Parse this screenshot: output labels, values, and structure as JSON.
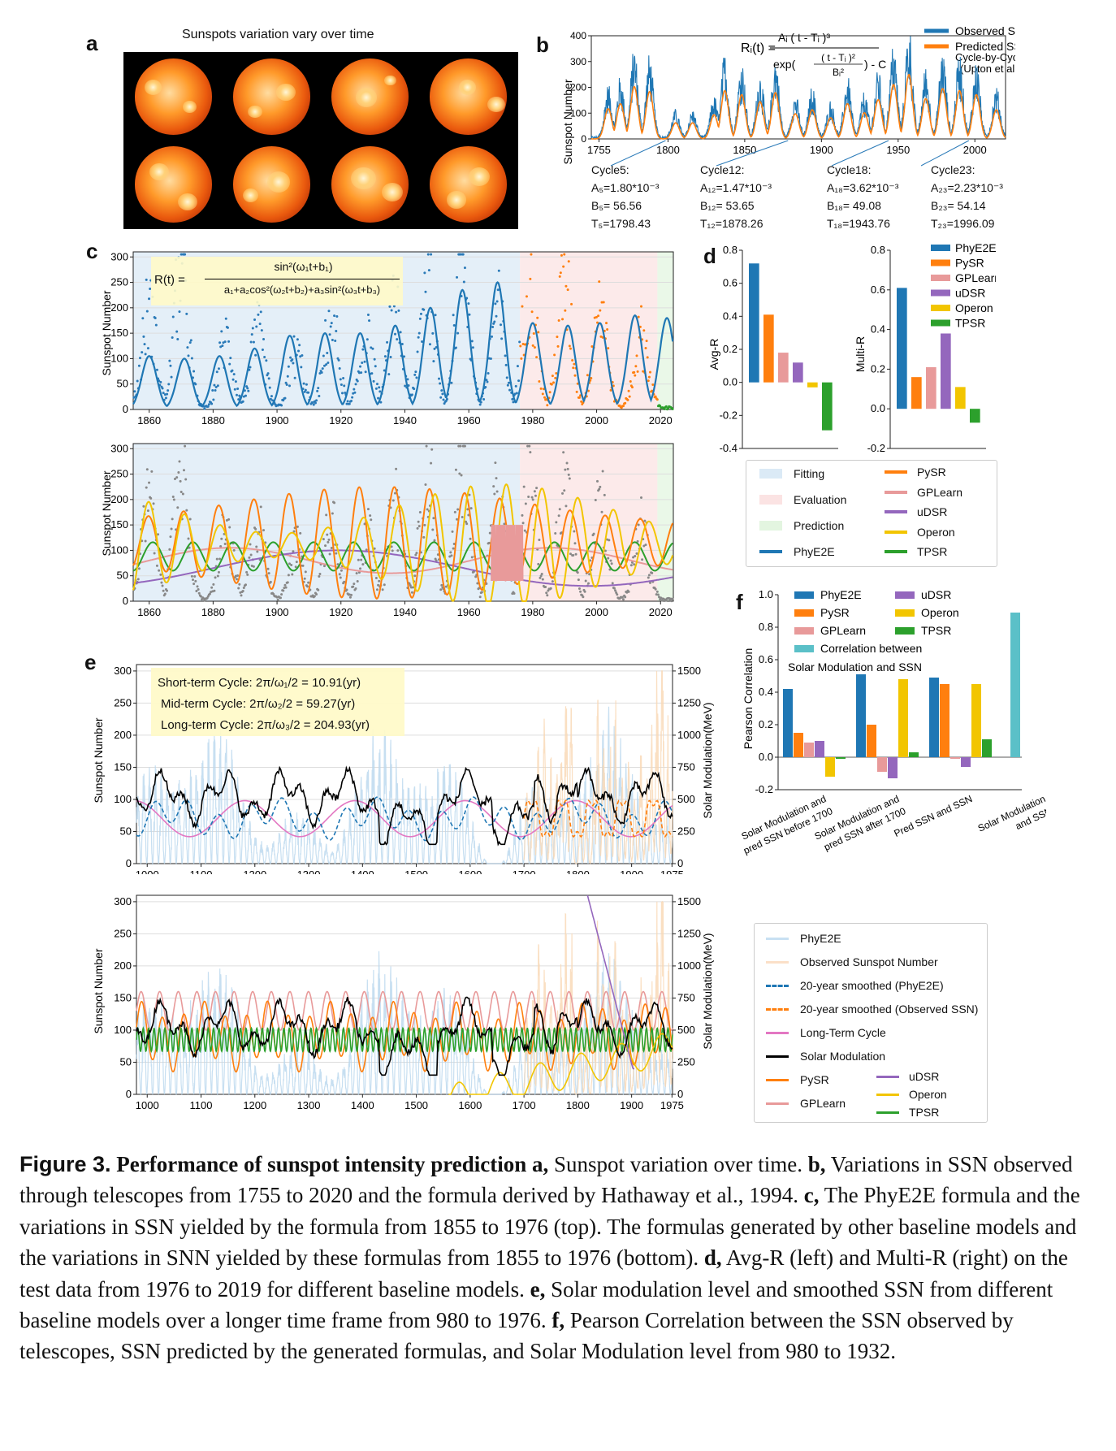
{
  "panels": {
    "a": "a",
    "b": "b",
    "c": "c",
    "d": "d",
    "e": "e",
    "f": "f"
  },
  "panel_a": {
    "title": "Sunspots variation vary over time"
  },
  "panel_b": {
    "formula": {
      "lhs": "Rᵢ(t) =",
      "num": "Aᵢ ( t - Tᵢ )³",
      "den_a": "exp(",
      "den_frac_num": "( t - Tᵢ )²",
      "den_frac_den": "Bᵢ²",
      "den_b": ") - C"
    },
    "ylabel": "Sunspot Number",
    "legend": [
      "Observed SSN",
      "Predicted SSN",
      "Cycle-by-Cycle",
      "(Upton et al.)"
    ],
    "annotations": [
      {
        "title": "Cycle5:",
        "a": "A₅=1.80*10⁻³",
        "b": "B₅= 56.56",
        "t": "T₅=1798.43"
      },
      {
        "title": "Cycle12:",
        "a": "A₁₂=1.47*10⁻³",
        "b": "B₁₂= 53.65",
        "t": "T₁₂=1878.26"
      },
      {
        "title": "Cycle18:",
        "a": "A₁₈=3.62*10⁻³",
        "b": "B₁₈= 49.08",
        "t": "T₁₈=1943.76"
      },
      {
        "title": "Cycle23:",
        "a": "A₂₃=2.23*10⁻³",
        "b": "B₂₃= 54.14",
        "t": "T₂₃=1996.09"
      }
    ]
  },
  "panel_c": {
    "formula": {
      "lhs": "R(t) =",
      "num": "sin²(ω₁t+b₁)",
      "den": "a₁+a₂cos²(ω₂t+b₂)+a₃sin²(ω₃t+b₃)"
    },
    "ylabel": "Sunspot Number"
  },
  "panel_d": {
    "left_ylabel": "Avg-R",
    "right_ylabel": "Multi-R",
    "legend_right": [
      "PhyE2E",
      "PySR",
      "GPLearn",
      "uDSR",
      "Operon",
      "TPSR"
    ],
    "box_legend_left": [
      "Fitting",
      "Evaluation",
      "Prediction",
      "PhyE2E"
    ],
    "box_legend_right": [
      "PySR",
      "GPLearn",
      "uDSR",
      "Operon",
      "TPSR"
    ]
  },
  "panel_e": {
    "textbox": [
      "Short-term Cycle:  2π/ω₁/2 = 10.91(yr)",
      "Mid-term Cycle:  2π/ω₂/2 = 59.27(yr)",
      "Long-term Cycle:  2π/ω₃/2 = 204.93(yr)"
    ],
    "ylabel_left": "Sunspot Number",
    "ylabel_right": "Solar Modulation(MeV)"
  },
  "panel_f": {
    "ylabel": "Pearson Correlation",
    "legend": [
      "PhyE2E",
      "PySR",
      "GPLearn",
      "Correlation between",
      "uDSR",
      "Operon",
      "TPSR"
    ],
    "legend_extra": "Solar Modulation and SSN",
    "categories_text": [
      [
        "Solar Modulation and",
        "pred SSN before 1700"
      ],
      [
        "Solar Modulation and",
        "pred SSN after 1700"
      ],
      [
        "Pred SSN and SSN"
      ],
      [
        "Solar Modulation",
        "and SSN"
      ]
    ]
  },
  "legend_e": {
    "left": [
      "PhyE2E",
      "Observed Sunspot Number",
      "20-year smoothed (PhyE2E)",
      "20-year smoothed (Observed SSN)",
      "Long-Term Cycle",
      "Solar Modulation",
      "PySR",
      "GPLearn"
    ],
    "right": [
      "uDSR",
      "Operon",
      "TPSR"
    ]
  },
  "colors": {
    "phye2e": "#1f77b4",
    "pysr": "#ff7f0e",
    "gplearn": "#e89a9a",
    "udsr": "#9467bd",
    "operon": "#f2c500",
    "tpsr": "#2ca02c",
    "corr": "#5bc0c8",
    "fit": "#dbeaf6",
    "eval": "#fbe3e3",
    "pred": "#e3f5e0"
  },
  "chart_data": [
    {
      "id": "b",
      "type": "line",
      "x_range": [
        1750,
        2020
      ],
      "ylim": [
        0,
        400
      ],
      "xticks": [
        1755,
        1800,
        1850,
        1900,
        1950,
        2000
      ],
      "yticks": [
        0,
        100,
        200,
        300,
        400
      ],
      "cycle_peaks": [
        {
          "year": 1761,
          "ssn": 150
        },
        {
          "year": 1769,
          "ssn": 175
        },
        {
          "year": 1778,
          "ssn": 260
        },
        {
          "year": 1788,
          "ssn": 235
        },
        {
          "year": 1805,
          "ssn": 80
        },
        {
          "year": 1816,
          "ssn": 80
        },
        {
          "year": 1830,
          "ssn": 120
        },
        {
          "year": 1837,
          "ssn": 240
        },
        {
          "year": 1848,
          "ssn": 220
        },
        {
          "year": 1860,
          "ssn": 185
        },
        {
          "year": 1870,
          "ssn": 230
        },
        {
          "year": 1883,
          "ssn": 125
        },
        {
          "year": 1894,
          "ssn": 145
        },
        {
          "year": 1906,
          "ssn": 105
        },
        {
          "year": 1917,
          "ssn": 175
        },
        {
          "year": 1928,
          "ssn": 130
        },
        {
          "year": 1937,
          "ssn": 195
        },
        {
          "year": 1947,
          "ssn": 270
        },
        {
          "year": 1957,
          "ssn": 320
        },
        {
          "year": 1968,
          "ssn": 200
        },
        {
          "year": 1979,
          "ssn": 250
        },
        {
          "year": 1990,
          "ssn": 240
        },
        {
          "year": 2001,
          "ssn": 220
        },
        {
          "year": 2014,
          "ssn": 145
        }
      ]
    },
    {
      "id": "c-top",
      "type": "scatter",
      "x_range": [
        1855,
        2024
      ],
      "ylim": [
        0,
        310
      ],
      "xticks": [
        1860,
        1880,
        1900,
        1920,
        1940,
        1960,
        1980,
        2000,
        2020
      ],
      "yticks": [
        0,
        50,
        100,
        150,
        200,
        250,
        300
      ],
      "regions": [
        {
          "name": "Fitting",
          "from": 1855,
          "to": 1976
        },
        {
          "name": "Evaluation",
          "from": 1976,
          "to": 2019
        },
        {
          "name": "Prediction",
          "from": 2019,
          "to": 2024
        }
      ],
      "phye2e_curve_peaks": [
        {
          "year": 1860,
          "ssn": 105
        },
        {
          "year": 1871,
          "ssn": 100
        },
        {
          "year": 1882,
          "ssn": 105
        },
        {
          "year": 1893,
          "ssn": 120
        },
        {
          "year": 1904,
          "ssn": 145
        },
        {
          "year": 1915,
          "ssn": 150
        },
        {
          "year": 1926,
          "ssn": 150
        },
        {
          "year": 1937,
          "ssn": 165
        },
        {
          "year": 1948,
          "ssn": 200
        },
        {
          "year": 1958,
          "ssn": 235
        },
        {
          "year": 1969,
          "ssn": 250
        },
        {
          "year": 1980,
          "ssn": 170
        },
        {
          "year": 1991,
          "ssn": 165
        },
        {
          "year": 2001,
          "ssn": 170
        },
        {
          "year": 2012,
          "ssn": 185
        },
        {
          "year": 2022,
          "ssn": 180
        }
      ],
      "observed_peaks": [
        {
          "year": 1860,
          "ssn": 200
        },
        {
          "year": 1870,
          "ssn": 280
        },
        {
          "year": 1884,
          "ssn": 140
        },
        {
          "year": 1894,
          "ssn": 150
        },
        {
          "year": 1906,
          "ssn": 110
        },
        {
          "year": 1917,
          "ssn": 180
        },
        {
          "year": 1928,
          "ssn": 140
        },
        {
          "year": 1937,
          "ssn": 200
        },
        {
          "year": 1947,
          "ssn": 270
        },
        {
          "year": 1958,
          "ssn": 310
        },
        {
          "year": 1969,
          "ssn": 200
        },
        {
          "year": 1979,
          "ssn": 260
        },
        {
          "year": 1990,
          "ssn": 250
        },
        {
          "year": 2001,
          "ssn": 220
        },
        {
          "year": 2014,
          "ssn": 145
        }
      ]
    },
    {
      "id": "c-bottom",
      "type": "line",
      "x_range": [
        1855,
        2024
      ],
      "ylim": [
        0,
        310
      ],
      "xticks": [
        1860,
        1880,
        1900,
        1920,
        1940,
        1960,
        1980,
        2000,
        2020
      ],
      "yticks": [
        0,
        50,
        100,
        150,
        200,
        250,
        300
      ],
      "series": [
        {
          "name": "PySR",
          "description": "oscillating fit amplitude 0-230"
        },
        {
          "name": "GPLearn",
          "description": "slow oscillation near 50-110"
        },
        {
          "name": "uDSR",
          "description": "long-period wave 30-100"
        },
        {
          "name": "Operon",
          "description": "oscillating fit amplitude 0-250"
        },
        {
          "name": "TPSR",
          "description": "oscillation 55-120"
        }
      ]
    },
    {
      "id": "d-left",
      "type": "bar",
      "title": "",
      "ylabel": "Avg-R",
      "ylim": [
        -0.4,
        0.8
      ],
      "yticks": [
        -0.4,
        -0.2,
        0.0,
        0.2,
        0.4,
        0.6,
        0.8
      ],
      "categories": [
        "PhyE2E",
        "PySR",
        "GPLearn",
        "uDSR",
        "Operon",
        "TPSR"
      ],
      "values": [
        0.72,
        0.41,
        0.18,
        0.12,
        -0.03,
        -0.29
      ]
    },
    {
      "id": "d-right",
      "type": "bar",
      "ylabel": "Multi-R",
      "ylim": [
        -0.2,
        0.8
      ],
      "yticks": [
        -0.2,
        0.0,
        0.2,
        0.4,
        0.6,
        0.8
      ],
      "categories": [
        "PhyE2E",
        "PySR",
        "GPLearn",
        "uDSR",
        "Operon",
        "TPSR"
      ],
      "values": [
        0.61,
        0.16,
        0.21,
        0.38,
        0.11,
        -0.07
      ]
    },
    {
      "id": "e-top",
      "type": "line",
      "x_range": [
        980,
        1976
      ],
      "ylim": [
        0,
        310
      ],
      "y2lim": [
        0,
        1550
      ],
      "xticks": [
        1000,
        1100,
        1200,
        1300,
        1400,
        1500,
        1600,
        1700,
        1800,
        1900,
        1975
      ],
      "yticks": [
        0,
        50,
        100,
        150,
        200,
        250,
        300
      ],
      "y2ticks": [
        0,
        250,
        500,
        750,
        1000,
        1250,
        1500
      ]
    },
    {
      "id": "e-bottom",
      "type": "line",
      "x_range": [
        980,
        1976
      ],
      "ylim": [
        0,
        310
      ],
      "y2lim": [
        0,
        1550
      ],
      "xticks": [
        1000,
        1100,
        1200,
        1300,
        1400,
        1500,
        1600,
        1700,
        1800,
        1900,
        1975
      ],
      "yticks": [
        0,
        50,
        100,
        150,
        200,
        250,
        300
      ],
      "y2ticks": [
        0,
        250,
        500,
        750,
        1000,
        1250,
        1500
      ]
    },
    {
      "id": "f",
      "type": "bar",
      "ylabel": "Pearson Correlation",
      "ylim": [
        -0.2,
        1.0
      ],
      "yticks": [
        -0.2,
        0.0,
        0.2,
        0.4,
        0.6,
        0.8,
        1.0
      ],
      "groups": [
        "Solar Modulation and pred SSN before 1700",
        "Solar Modulation and pred SSN after 1700",
        "Pred SSN and SSN",
        "Solar Modulation and SSN"
      ],
      "series": [
        {
          "name": "PhyE2E",
          "values": [
            0.42,
            0.51,
            0.49,
            null
          ]
        },
        {
          "name": "PySR",
          "values": [
            0.15,
            0.2,
            0.45,
            null
          ]
        },
        {
          "name": "GPLearn",
          "values": [
            0.09,
            -0.09,
            -0.01,
            null
          ]
        },
        {
          "name": "uDSR",
          "values": [
            0.1,
            -0.13,
            -0.06,
            null
          ]
        },
        {
          "name": "Operon",
          "values": [
            -0.12,
            0.48,
            0.45,
            null
          ]
        },
        {
          "name": "TPSR",
          "values": [
            -0.01,
            0.03,
            0.11,
            null
          ]
        },
        {
          "name": "Correlation between Solar Modulation and SSN",
          "values": [
            null,
            null,
            null,
            0.89
          ]
        }
      ]
    }
  ],
  "caption": {
    "label": "Figure 3.",
    "title": "Performance of sunspot intensity prediction",
    "a_label": "a,",
    "a_text": "Sunspot variation over time.",
    "b_label": "b,",
    "b_text": "Variations in SSN observed through telescopes from 1755 to 2020 and the formula derived by Hathaway et al., 1994.",
    "c_label": "c,",
    "c_text": "The PhyE2E formula and the variations in SSN yielded by the formula from 1855 to 1976 (top). The formulas generated by other baseline models and the variations in SNN yielded by these formulas from 1855 to 1976 (bottom).",
    "d_label": "d,",
    "d_text": "Avg-R (left) and Multi-R (right) on the test data from 1976 to 2019 for different baseline models.",
    "e_label": "e,",
    "e_text": "Solar modulation level and smoothed SSN from different baseline models over a longer time frame from 980 to 1976.",
    "f_label": "f,",
    "f_text": "Pearson Correlation between the SSN observed by telescopes, SSN predicted by the generated formulas, and Solar Modulation level from 980 to 1932."
  }
}
